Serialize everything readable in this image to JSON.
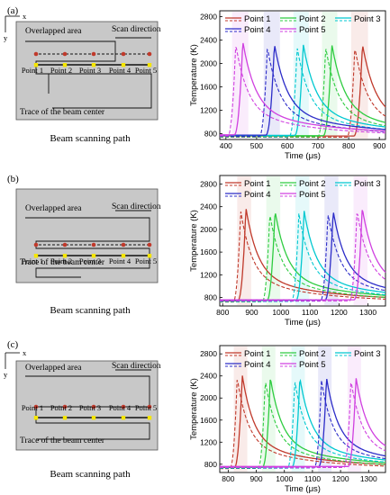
{
  "panels": [
    {
      "panel_label": "(a)",
      "diagram": {
        "x_axis_label": "x",
        "y_axis_label": "y",
        "overlap_label": "Overlapped area",
        "scan_label": "Scan direction",
        "trace_label": "Trace of the beam center",
        "points": [
          "Point 1",
          "Point 2",
          "Point 3",
          "Point 4",
          "Point 5"
        ],
        "caption": "Beam scanning path"
      }
    },
    {
      "panel_label": "(b)",
      "diagram": {
        "x_axis_label": "",
        "y_axis_label": "",
        "overlap_label": "Overlapped area",
        "scan_label": "Scan direction",
        "trace_label": "Trace of the beam center",
        "points": [
          "Point 1",
          "Point 2",
          "Point 3",
          "Point 4",
          "Point 5"
        ],
        "caption": "Beam scanning path"
      }
    },
    {
      "panel_label": "(c)",
      "diagram": {
        "x_axis_label": "x",
        "y_axis_label": "y",
        "overlap_label": "Overlapped area",
        "scan_label": "Scan direction",
        "trace_label": "Trace of the beam center",
        "points": [
          "Point 1",
          "Point 2",
          "Point 3",
          "Point 4",
          "Point 5"
        ],
        "caption": "Beam scanning path"
      }
    }
  ],
  "colors": {
    "point_1": "#c0392b",
    "point_2": "#2ecc40",
    "point_3": "#00c8d0",
    "point_4": "#2c2cc8",
    "point_5": "#d040e0",
    "diagram_fill": "#c8c8c8",
    "marker_red": "#c0392b",
    "marker_yellow": "#f5e600"
  },
  "legend_note": "solid and dashed line per point",
  "chart_data": [
    {
      "type": "line",
      "xlabel": "Time (μs)",
      "ylabel": "Temperature (K)",
      "xlim": [
        380,
        920
      ],
      "ylim": [
        700,
        2900
      ],
      "xticks": [
        400,
        500,
        600,
        700,
        800,
        900
      ],
      "yticks": [
        800,
        1200,
        1600,
        2000,
        2400,
        2800
      ],
      "legend": "top",
      "series": [
        {
          "name": "Point 1",
          "color": "#c0392b",
          "peak_x": 845,
          "peak_y": 2330,
          "dash_peak_x": 820,
          "dash_peak_y": 2280
        },
        {
          "name": "Point 2",
          "color": "#2ecc40",
          "peak_x": 745,
          "peak_y": 2330,
          "dash_peak_x": 725,
          "dash_peak_y": 2280
        },
        {
          "name": "Point 3",
          "color": "#00c8d0",
          "peak_x": 652,
          "peak_y": 2330,
          "dash_peak_x": 632,
          "dash_peak_y": 2280
        },
        {
          "name": "Point 4",
          "color": "#2c2cc8",
          "peak_x": 558,
          "peak_y": 2330,
          "dash_peak_x": 535,
          "dash_peak_y": 2280
        },
        {
          "name": "Point 5",
          "color": "#d040e0",
          "peak_x": 455,
          "peak_y": 2380,
          "dash_peak_x": 432,
          "dash_peak_y": 2330
        }
      ]
    },
    {
      "type": "line",
      "xlabel": "Time (μs)",
      "ylabel": "Temperature (K)",
      "xlim": [
        790,
        1360
      ],
      "ylim": [
        650,
        2950
      ],
      "xticks": [
        800,
        900,
        1000,
        1100,
        1200,
        1300
      ],
      "yticks": [
        800,
        1200,
        1600,
        2000,
        2400,
        2800
      ],
      "legend": "top",
      "series": [
        {
          "name": "Point 1",
          "color": "#c0392b",
          "peak_x": 880,
          "peak_y": 2380,
          "dash_peak_x": 862,
          "dash_peak_y": 2330
        },
        {
          "name": "Point 2",
          "color": "#2ecc40",
          "peak_x": 980,
          "peak_y": 2330,
          "dash_peak_x": 962,
          "dash_peak_y": 2280
        },
        {
          "name": "Point 3",
          "color": "#00c8d0",
          "peak_x": 1080,
          "peak_y": 2330,
          "dash_peak_x": 1062,
          "dash_peak_y": 2280
        },
        {
          "name": "Point 4",
          "color": "#2c2cc8",
          "peak_x": 1180,
          "peak_y": 2330,
          "dash_peak_x": 1162,
          "dash_peak_y": 2280
        },
        {
          "name": "Point 5",
          "color": "#d040e0",
          "peak_x": 1280,
          "peak_y": 2380,
          "dash_peak_x": 1262,
          "dash_peak_y": 2330
        }
      ]
    },
    {
      "type": "line",
      "xlabel": "Time (μs)",
      "ylabel": "Temperature (K)",
      "xlim": [
        770,
        1360
      ],
      "ylim": [
        650,
        2950
      ],
      "xticks": [
        800,
        900,
        1000,
        1100,
        1200,
        1300
      ],
      "yticks": [
        800,
        1200,
        1600,
        2000,
        2400,
        2800
      ],
      "legend": "top",
      "series": [
        {
          "name": "Point 1",
          "color": "#c0392b",
          "peak_x": 850,
          "peak_y": 2420,
          "dash_peak_x": 832,
          "dash_peak_y": 2370
        },
        {
          "name": "Point 2",
          "color": "#2ecc40",
          "peak_x": 950,
          "peak_y": 2370,
          "dash_peak_x": 932,
          "dash_peak_y": 2320
        },
        {
          "name": "Point 3",
          "color": "#00c8d0",
          "peak_x": 1055,
          "peak_y": 2370,
          "dash_peak_x": 1037,
          "dash_peak_y": 2320
        },
        {
          "name": "Point 4",
          "color": "#2c2cc8",
          "peak_x": 1150,
          "peak_y": 2370,
          "dash_peak_x": 1132,
          "dash_peak_y": 2320
        },
        {
          "name": "Point 5",
          "color": "#d040e0",
          "peak_x": 1255,
          "peak_y": 2370,
          "dash_peak_x": 1237,
          "dash_peak_y": 2320
        }
      ]
    }
  ]
}
